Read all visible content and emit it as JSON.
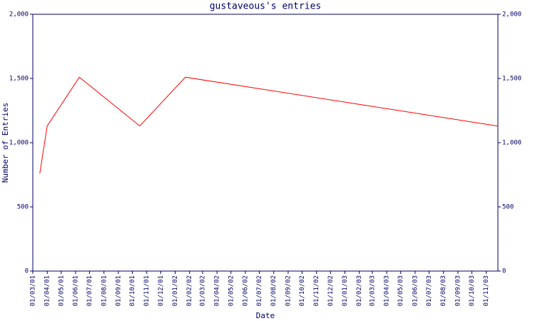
{
  "chart_data": {
    "type": "line",
    "title": "gustaveous's entries",
    "x_label": "Date",
    "y_label": "Number of Entries",
    "x": [
      "2001-03-16",
      "2001-04-01",
      "2001-06-09",
      "2001-10-17",
      "2002-01-23",
      "2003-11-25"
    ],
    "series": [
      {
        "name": "entries",
        "color": "#ff0000",
        "values": [
          760,
          1130,
          1510,
          1130,
          1510,
          1130
        ]
      }
    ],
    "xlim": [
      "2001-03-01",
      "2003-11-26"
    ],
    "xticks": [
      {
        "value": "2001-03-01",
        "label": "01/03/01"
      },
      {
        "value": "2001-04-01",
        "label": "01/04/01"
      },
      {
        "value": "2001-05-01",
        "label": "01/05/01"
      },
      {
        "value": "2001-06-01",
        "label": "01/06/01"
      },
      {
        "value": "2001-07-01",
        "label": "01/07/01"
      },
      {
        "value": "2001-08-01",
        "label": "01/08/01"
      },
      {
        "value": "2001-09-01",
        "label": "01/09/01"
      },
      {
        "value": "2001-10-01",
        "label": "01/10/01"
      },
      {
        "value": "2001-11-01",
        "label": "01/11/01"
      },
      {
        "value": "2001-12-01",
        "label": "01/12/01"
      },
      {
        "value": "2002-01-01",
        "label": "01/01/02"
      },
      {
        "value": "2002-02-01",
        "label": "01/02/02"
      },
      {
        "value": "2002-03-01",
        "label": "01/03/02"
      },
      {
        "value": "2002-04-01",
        "label": "01/04/02"
      },
      {
        "value": "2002-05-01",
        "label": "01/05/02"
      },
      {
        "value": "2002-06-01",
        "label": "01/06/02"
      },
      {
        "value": "2002-07-01",
        "label": "01/07/02"
      },
      {
        "value": "2002-08-01",
        "label": "01/08/02"
      },
      {
        "value": "2002-09-01",
        "label": "01/09/02"
      },
      {
        "value": "2002-10-01",
        "label": "01/10/02"
      },
      {
        "value": "2002-11-01",
        "label": "01/11/02"
      },
      {
        "value": "2002-12-01",
        "label": "01/12/02"
      },
      {
        "value": "2003-01-01",
        "label": "01/01/03"
      },
      {
        "value": "2003-02-01",
        "label": "01/02/03"
      },
      {
        "value": "2003-03-01",
        "label": "01/03/03"
      },
      {
        "value": "2003-04-01",
        "label": "01/04/03"
      },
      {
        "value": "2003-05-01",
        "label": "01/05/03"
      },
      {
        "value": "2003-06-01",
        "label": "01/06/03"
      },
      {
        "value": "2003-07-01",
        "label": "01/07/03"
      },
      {
        "value": "2003-08-01",
        "label": "01/08/03"
      },
      {
        "value": "2003-09-01",
        "label": "01/09/03"
      },
      {
        "value": "2003-10-01",
        "label": "01/10/03"
      },
      {
        "value": "2003-11-01",
        "label": "01/11/03"
      }
    ],
    "ylim": [
      0,
      2000
    ],
    "yticks": [
      0,
      500,
      {
        "value": 1000,
        "label": "1,000"
      },
      {
        "value": 1500,
        "label": "1,500"
      },
      {
        "value": 2000,
        "label": "2,000"
      }
    ],
    "axis_color": "#000066"
  }
}
